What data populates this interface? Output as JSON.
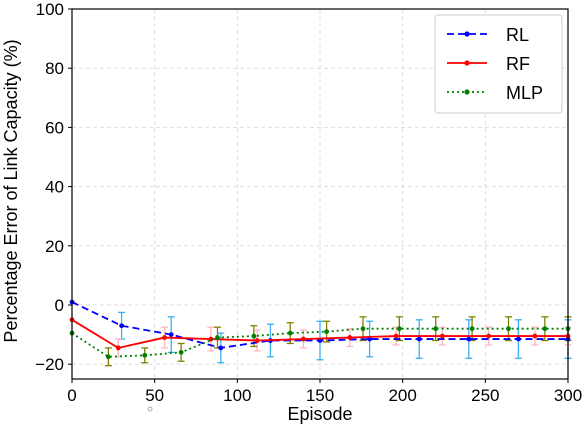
{
  "chart_data": {
    "type": "line",
    "title": "",
    "xlabel": "Episode",
    "ylabel": "Percentage Error of Link Capacity (%)",
    "xlim": [
      0,
      300
    ],
    "ylim": [
      -25,
      100
    ],
    "xticks": [
      "0",
      "50",
      "100",
      "150",
      "200",
      "250",
      "300"
    ],
    "yticks": [
      "−20",
      "0",
      "20",
      "40",
      "60",
      "80",
      "100"
    ],
    "grid": true,
    "legend_position": "top-right",
    "series": [
      {
        "name": "RL",
        "color": "#0000ff",
        "error_color": "#3ab0f0",
        "line_style": "dashed",
        "x": [
          0,
          30,
          60,
          90,
          120,
          150,
          180,
          210,
          240,
          270,
          300
        ],
        "y": [
          1,
          -7,
          -10,
          -14.5,
          -12,
          -12,
          -11.5,
          -11.5,
          -11.5,
          -11.5,
          -11.5
        ],
        "error": [
          0,
          4.5,
          6,
          5,
          5.5,
          6.5,
          6,
          6.5,
          6.5,
          6.5,
          6.5
        ]
      },
      {
        "name": "RF",
        "color": "#ff0000",
        "error_color": "#ffb6c1",
        "line_style": "solid",
        "x": [
          0,
          28,
          56,
          84,
          112,
          140,
          168,
          196,
          224,
          252,
          280,
          300
        ],
        "y": [
          -5,
          -14.5,
          -11,
          -11.5,
          -12,
          -11.5,
          -11,
          -10.5,
          -10.5,
          -10.5,
          -10.5,
          -10.5
        ],
        "error": [
          0,
          3,
          3.5,
          4,
          3.5,
          3,
          3,
          3,
          3,
          3,
          3,
          3
        ]
      },
      {
        "name": "MLP",
        "color": "#008000",
        "error_color": "#808000",
        "line_style": "dotted",
        "x": [
          0,
          22,
          44,
          66,
          88,
          110,
          132,
          154,
          176,
          198,
          220,
          242,
          264,
          286,
          300
        ],
        "y": [
          -9.5,
          -17.5,
          -17,
          -16,
          -11,
          -10.5,
          -9.5,
          -9,
          -8,
          -8,
          -8,
          -8,
          -8,
          -8,
          -8
        ],
        "error": [
          0,
          3,
          2.5,
          3,
          3.5,
          3.5,
          3.5,
          3.5,
          4,
          4,
          4,
          4,
          4,
          4,
          4
        ]
      }
    ]
  }
}
